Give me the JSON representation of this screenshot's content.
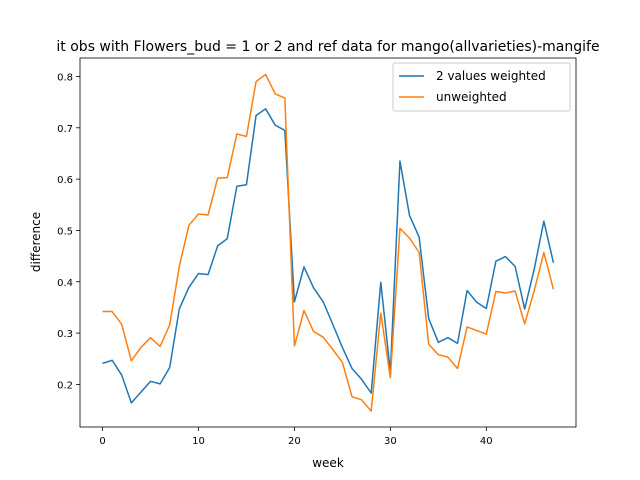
{
  "chart_data": {
    "type": "line",
    "title": "it obs with Flowers_bud = 1 or 2 and ref data for mango(allvarieties)-mangife",
    "xlabel": "week",
    "ylabel": "difference",
    "xlim": [
      -2.35,
      49.35
    ],
    "ylim": [
      0.117,
      0.836
    ],
    "xticks": [
      0,
      10,
      20,
      30,
      40
    ],
    "xtick_labels": [
      "0",
      "10",
      "20",
      "30",
      "40"
    ],
    "yticks": [
      0.2,
      0.3,
      0.4,
      0.5,
      0.6,
      0.7,
      0.8
    ],
    "ytick_labels": [
      "0.2",
      "0.3",
      "0.4",
      "0.5",
      "0.6",
      "0.7",
      "0.8"
    ],
    "grid": false,
    "legend_position": "upper right",
    "x": [
      0,
      1,
      2,
      3,
      4,
      5,
      6,
      7,
      8,
      9,
      10,
      11,
      12,
      13,
      14,
      15,
      16,
      17,
      18,
      19,
      20,
      21,
      22,
      23,
      24,
      25,
      26,
      27,
      28,
      29,
      30,
      31,
      32,
      33,
      34,
      35,
      36,
      37,
      38,
      39,
      40,
      41,
      42,
      43,
      44,
      45,
      46,
      47
    ],
    "series": [
      {
        "name": "2 values weighted",
        "color": "#1f77b4",
        "values": [
          0.241,
          0.247,
          0.218,
          0.164,
          0.185,
          0.206,
          0.201,
          0.233,
          0.347,
          0.389,
          0.416,
          0.414,
          0.47,
          0.484,
          0.586,
          0.589,
          0.724,
          0.737,
          0.705,
          0.695,
          0.361,
          0.429,
          0.388,
          0.361,
          0.317,
          0.272,
          0.231,
          0.21,
          0.183,
          0.399,
          0.224,
          0.635,
          0.529,
          0.487,
          0.328,
          0.282,
          0.291,
          0.28,
          0.383,
          0.36,
          0.348,
          0.44,
          0.449,
          0.43,
          0.347,
          0.425,
          0.518,
          0.437
        ]
      },
      {
        "name": "unweighted",
        "color": "#ff7f0e",
        "values": [
          0.342,
          0.342,
          0.317,
          0.246,
          0.272,
          0.291,
          0.274,
          0.316,
          0.43,
          0.51,
          0.532,
          0.53,
          0.602,
          0.603,
          0.688,
          0.683,
          0.79,
          0.804,
          0.766,
          0.758,
          0.275,
          0.344,
          0.303,
          0.292,
          0.268,
          0.243,
          0.176,
          0.17,
          0.148,
          0.339,
          0.213,
          0.504,
          0.485,
          0.457,
          0.278,
          0.258,
          0.253,
          0.231,
          0.312,
          0.305,
          0.298,
          0.381,
          0.378,
          0.382,
          0.318,
          0.383,
          0.457,
          0.385
        ]
      }
    ]
  }
}
